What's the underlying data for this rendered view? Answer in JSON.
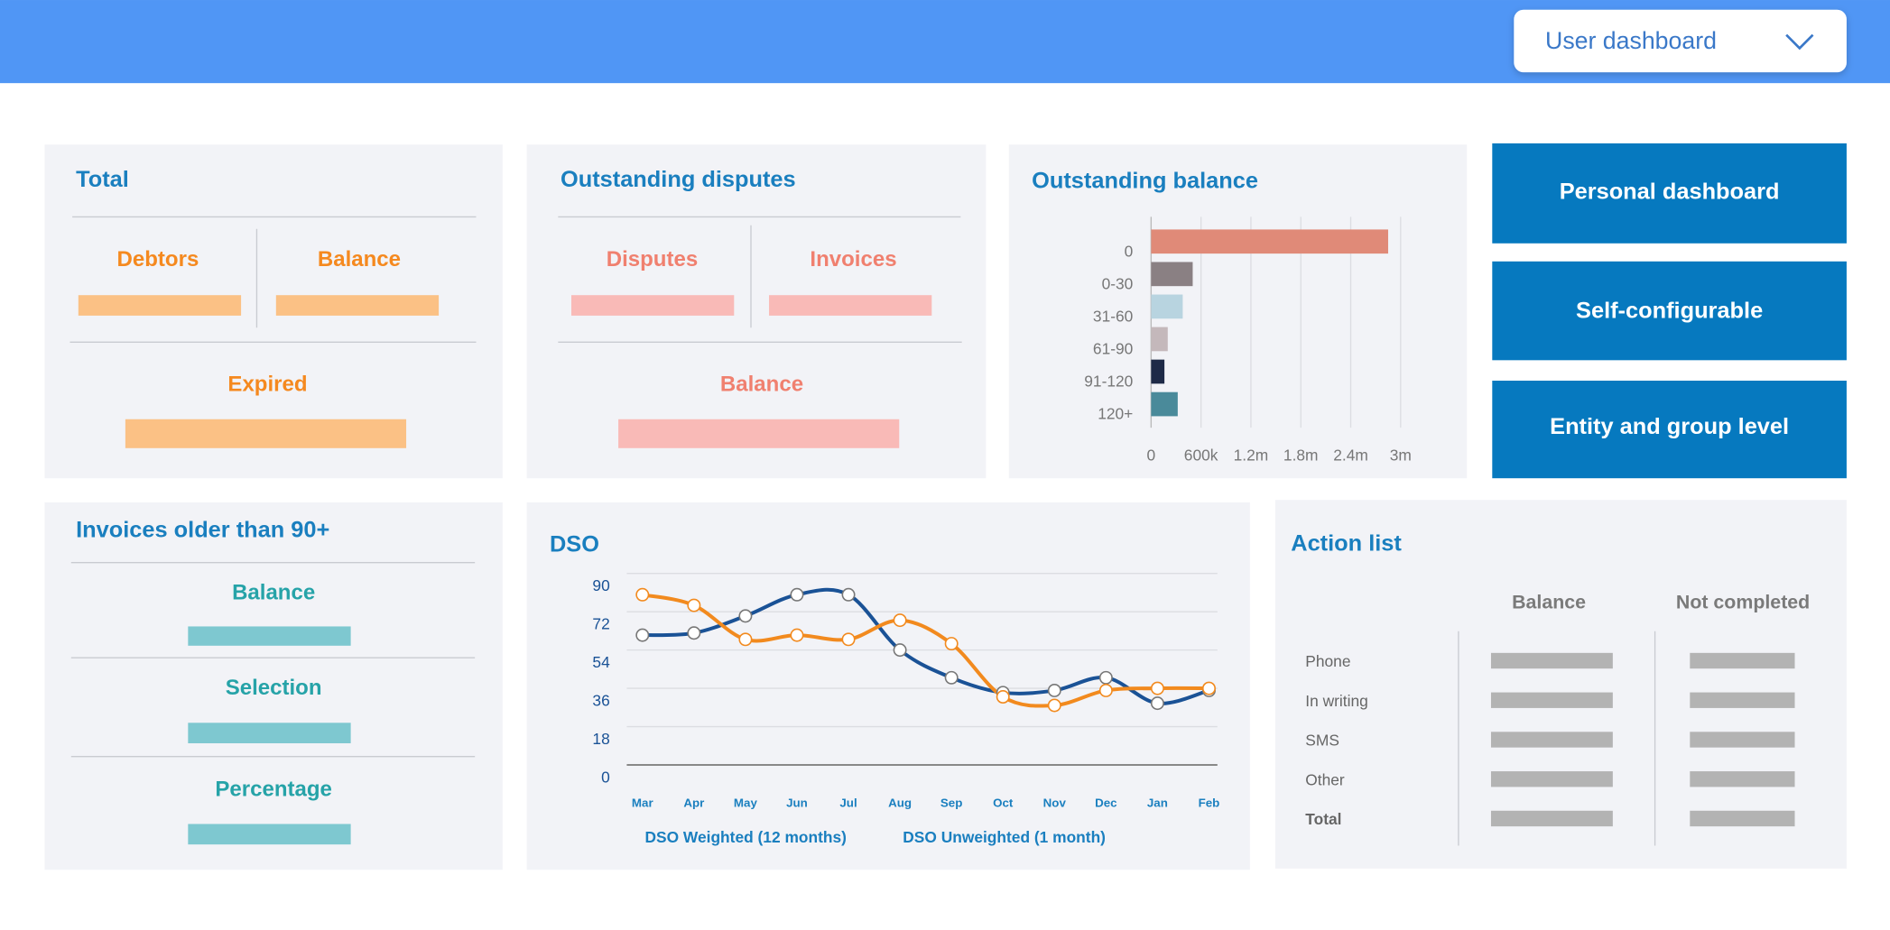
{
  "header": {
    "dropdown": "User dashboard"
  },
  "cards": {
    "total": {
      "title": "Total",
      "labels": [
        "Debtors",
        "Balance",
        "Expired"
      ]
    },
    "disputes": {
      "title": "Outstanding disputes",
      "labels": [
        "Disputes",
        "Invoices",
        "Balance"
      ]
    },
    "invoices": {
      "title": "Invoices older than 90+",
      "labels": [
        "Balance",
        "Selection",
        "Percentage"
      ]
    }
  },
  "buttons": [
    "Personal dashboard",
    "Self-configurable",
    "Entity and group level"
  ],
  "action_list": {
    "title": "Action list",
    "columns": [
      "Balance",
      "Not completed"
    ],
    "rows": [
      "Phone",
      "In writing",
      "SMS",
      "Other",
      "Total"
    ]
  },
  "chart_data": [
    {
      "type": "bar",
      "orientation": "horizontal",
      "title": "Outstanding balance",
      "categories": [
        "0",
        "0-30",
        "31-60",
        "61-90",
        "91-120",
        "120+"
      ],
      "values": [
        2850000,
        500000,
        380000,
        200000,
        160000,
        320000
      ],
      "colors": [
        "#e08a78",
        "#8a8083",
        "#b8d4e0",
        "#c4b8bb",
        "#1e2a47",
        "#4a8a9a"
      ],
      "xlim": [
        0,
        3000000
      ],
      "xticks": [
        0,
        {
          "value": 600000,
          "label": "600k"
        },
        {
          "value": 1200000,
          "label": "1.2m"
        },
        {
          "value": 1800000,
          "label": "1.8m"
        },
        {
          "value": 2400000,
          "label": "2.4m"
        },
        {
          "value": 3000000,
          "label": "3m"
        }
      ],
      "grid": true
    },
    {
      "type": "line",
      "title": "DSO",
      "categories": [
        "Mar",
        "Apr",
        "May",
        "Jun",
        "Jul",
        "Aug",
        "Sep",
        "Oct",
        "Nov",
        "Dec",
        "Jan",
        "Feb"
      ],
      "series": [
        {
          "name": "DSO Weighted (12 months)",
          "color": "#1a5296",
          "values": [
            61,
            62,
            70,
            80,
            80,
            54,
            41,
            34,
            35,
            41,
            29,
            35
          ]
        },
        {
          "name": "DSO Unweighted (1 month)",
          "color": "#f28a1e",
          "values": [
            80,
            75,
            59,
            61,
            59,
            68,
            57,
            32,
            28,
            35,
            36,
            36
          ]
        }
      ],
      "ylim": [
        0,
        90
      ],
      "yticks": [
        0,
        18,
        36,
        54,
        72,
        90
      ],
      "grid": true
    }
  ]
}
